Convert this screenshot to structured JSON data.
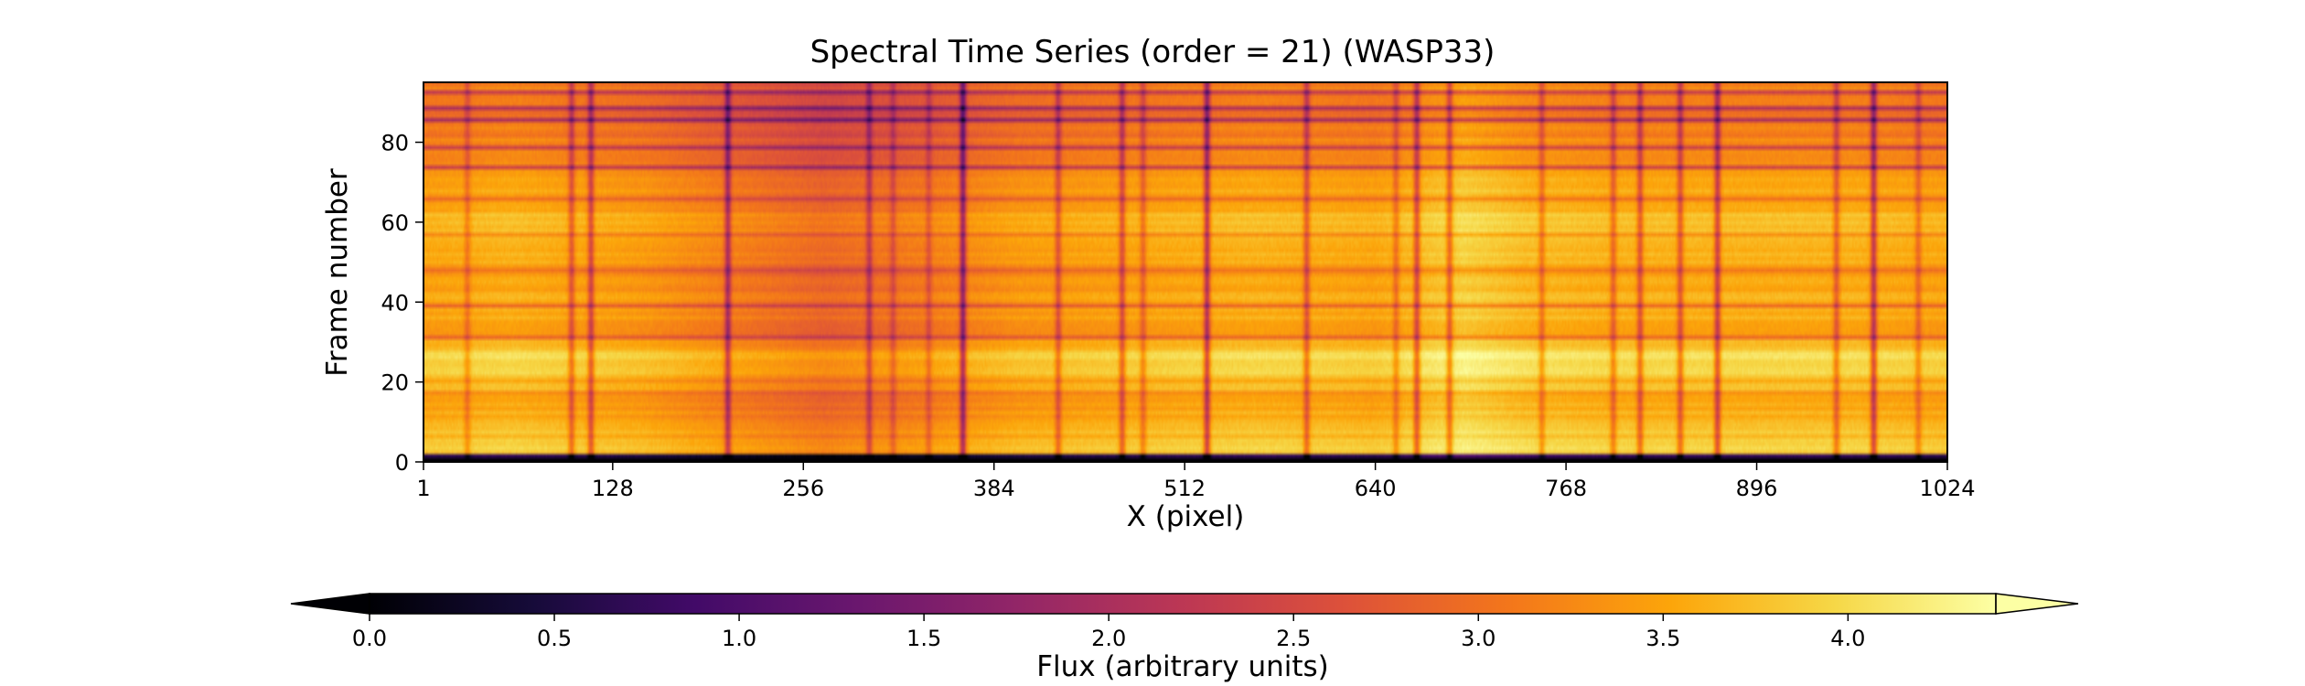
{
  "chart_data": {
    "type": "heatmap",
    "title": "Spectral Time Series (order = 21) (WASP33)",
    "xlabel": "X (pixel)",
    "ylabel": "Frame number",
    "xlim": [
      1,
      1024
    ],
    "ylim": [
      0,
      95
    ],
    "xticks": [
      1,
      128,
      256,
      384,
      512,
      640,
      768,
      896,
      1024
    ],
    "yticks": [
      0,
      20,
      40,
      60,
      80
    ],
    "colormap": "inferno",
    "colorbar": {
      "label": "Flux (arbitrary units)",
      "orientation": "horizontal",
      "location": "bottom",
      "vmin": 0.0,
      "vmax": 4.4,
      "extend": "both",
      "ticks": [
        0.0,
        0.5,
        1.0,
        1.5,
        2.0,
        2.5,
        3.0,
        3.5,
        4.0
      ],
      "tick_labels": [
        "0.0",
        "0.5",
        "1.0",
        "1.5",
        "2.0",
        "2.5",
        "3.0",
        "3.5",
        "4.0"
      ]
    },
    "frames": 96,
    "pixels": 1024,
    "background_flux_by_x": {
      "x": [
        1,
        60,
        150,
        220,
        270,
        330,
        400,
        480,
        560,
        640,
        700,
        740,
        800,
        880,
        960,
        1024
      ],
      "flux": [
        3.5,
        3.6,
        3.4,
        3.1,
        2.9,
        3.1,
        3.4,
        3.5,
        3.6,
        3.5,
        3.9,
        3.7,
        3.6,
        3.6,
        3.6,
        3.5
      ]
    },
    "flux_offset_by_frame": {
      "frame": [
        0,
        1,
        5,
        10,
        15,
        20,
        23,
        27,
        30,
        35,
        40,
        45,
        50,
        55,
        60,
        65,
        70,
        75,
        80,
        85,
        88,
        92,
        95
      ],
      "offset": [
        -3.5,
        0.2,
        0.25,
        0.0,
        0.0,
        0.1,
        0.45,
        0.35,
        0.0,
        -0.1,
        0.0,
        -0.1,
        0.0,
        0.1,
        0.3,
        0.0,
        -0.1,
        -0.3,
        -0.4,
        -0.5,
        -0.7,
        -0.4,
        -0.5
      ]
    },
    "dark_frame_bands": [
      {
        "frame": 0,
        "depth": 3.5
      },
      {
        "frame": 1,
        "depth": 3.0
      },
      {
        "frame": 17,
        "depth": 0.4
      },
      {
        "frame": 31,
        "depth": 0.5
      },
      {
        "frame": 39,
        "depth": 0.5
      },
      {
        "frame": 48,
        "depth": 0.5
      },
      {
        "frame": 57,
        "depth": 0.6
      },
      {
        "frame": 66,
        "depth": 0.5
      },
      {
        "frame": 74,
        "depth": 0.7
      },
      {
        "frame": 79,
        "depth": 0.7
      },
      {
        "frame": 86,
        "depth": 0.8
      },
      {
        "frame": 89,
        "depth": 0.8
      },
      {
        "frame": 93,
        "depth": 0.9
      }
    ],
    "absorption_lines": [
      {
        "x": 30,
        "depth": 0.5
      },
      {
        "x": 100,
        "depth": 0.8
      },
      {
        "x": 113,
        "depth": 1.0
      },
      {
        "x": 205,
        "depth": 1.2
      },
      {
        "x": 300,
        "depth": 0.8
      },
      {
        "x": 316,
        "depth": 0.5
      },
      {
        "x": 340,
        "depth": 0.5
      },
      {
        "x": 363,
        "depth": 1.5
      },
      {
        "x": 427,
        "depth": 0.8
      },
      {
        "x": 470,
        "depth": 0.9
      },
      {
        "x": 484,
        "depth": 0.6
      },
      {
        "x": 527,
        "depth": 1.4
      },
      {
        "x": 594,
        "depth": 0.9
      },
      {
        "x": 654,
        "depth": 0.6
      },
      {
        "x": 668,
        "depth": 1.1
      },
      {
        "x": 690,
        "depth": 0.9
      },
      {
        "x": 752,
        "depth": 0.6
      },
      {
        "x": 800,
        "depth": 0.7
      },
      {
        "x": 818,
        "depth": 0.9
      },
      {
        "x": 845,
        "depth": 0.9
      },
      {
        "x": 870,
        "depth": 1.2
      },
      {
        "x": 950,
        "depth": 0.8
      },
      {
        "x": 975,
        "depth": 1.3
      },
      {
        "x": 1005,
        "depth": 0.6
      }
    ]
  }
}
